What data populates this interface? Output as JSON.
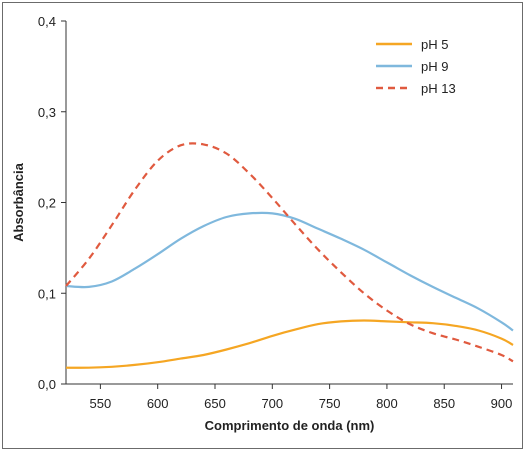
{
  "chart_data": {
    "type": "line",
    "xlabel": "Comprimento de onda (nm)",
    "ylabel": "Absorbância",
    "xlim": [
      520,
      910
    ],
    "ylim": [
      0,
      0.4
    ],
    "xticks": [
      550,
      600,
      650,
      700,
      750,
      800,
      850,
      900
    ],
    "yticks": [
      0,
      0.1,
      0.2,
      0.3,
      0.4
    ],
    "ytick_labels": [
      "0,0",
      "0,1",
      "0,2",
      "0,3",
      "0,4"
    ],
    "legend_position": "top-right",
    "series": [
      {
        "name": "pH 5",
        "color": "#f5a623",
        "dash": "solid",
        "x": [
          520,
          540,
          560,
          580,
          600,
          620,
          640,
          660,
          680,
          700,
          720,
          740,
          760,
          780,
          800,
          820,
          840,
          860,
          880,
          900,
          910
        ],
        "y": [
          0.018,
          0.018,
          0.019,
          0.021,
          0.024,
          0.028,
          0.032,
          0.038,
          0.045,
          0.053,
          0.06,
          0.066,
          0.069,
          0.07,
          0.069,
          0.068,
          0.067,
          0.064,
          0.059,
          0.05,
          0.043
        ]
      },
      {
        "name": "pH 9",
        "color": "#7fb8dd",
        "dash": "solid",
        "x": [
          520,
          540,
          560,
          580,
          600,
          620,
          640,
          660,
          680,
          700,
          720,
          740,
          760,
          780,
          800,
          820,
          840,
          860,
          880,
          900,
          910
        ],
        "y": [
          0.108,
          0.107,
          0.113,
          0.127,
          0.143,
          0.16,
          0.174,
          0.184,
          0.188,
          0.188,
          0.182,
          0.171,
          0.16,
          0.148,
          0.134,
          0.12,
          0.107,
          0.095,
          0.083,
          0.068,
          0.059
        ]
      },
      {
        "name": "pH 13",
        "color": "#e05a3f",
        "dash": "dashed",
        "x": [
          520,
          540,
          560,
          580,
          600,
          620,
          640,
          660,
          680,
          700,
          720,
          740,
          760,
          780,
          800,
          820,
          840,
          860,
          880,
          900,
          910
        ],
        "y": [
          0.108,
          0.138,
          0.175,
          0.214,
          0.246,
          0.263,
          0.264,
          0.254,
          0.232,
          0.205,
          0.176,
          0.148,
          0.123,
          0.1,
          0.081,
          0.066,
          0.056,
          0.049,
          0.041,
          0.032,
          0.025
        ]
      }
    ]
  }
}
